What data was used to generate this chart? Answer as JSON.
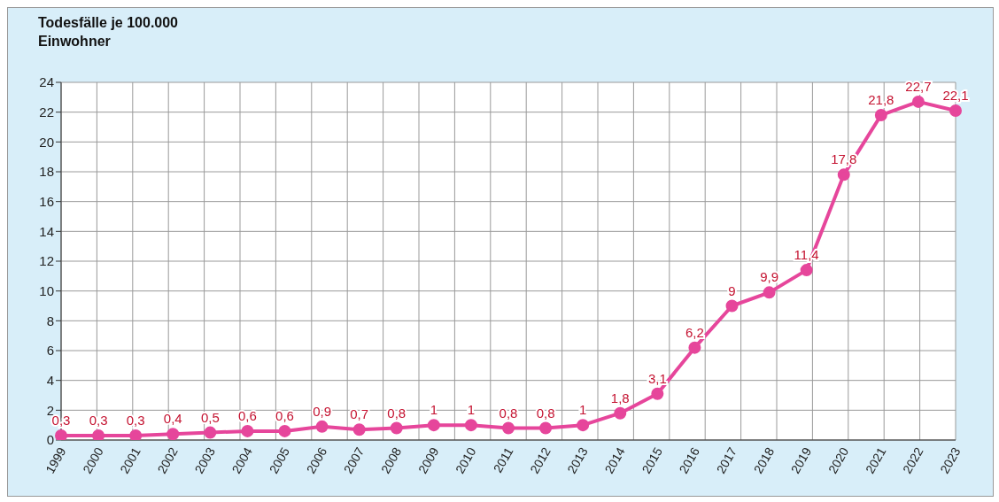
{
  "chart_data": {
    "type": "line",
    "ylabel": "Todesfälle je 100.000 Einwohner",
    "categories": [
      "1999",
      "2000",
      "2001",
      "2002",
      "2003",
      "2004",
      "2005",
      "2006",
      "2007",
      "2008",
      "2009",
      "2010",
      "2011",
      "2012",
      "2013",
      "2014",
      "2015",
      "2016",
      "2017",
      "2018",
      "2019",
      "2020",
      "2021",
      "2022",
      "2023"
    ],
    "series": [
      {
        "color": "#e6469b",
        "values": [
          0.3,
          0.3,
          0.3,
          0.4,
          0.5,
          0.6,
          0.6,
          0.9,
          0.7,
          0.8,
          1,
          1,
          0.8,
          0.8,
          1,
          1.8,
          3.1,
          6.2,
          9,
          9.9,
          11.4,
          17.8,
          21.8,
          22.7,
          22.1
        ],
        "value_labels": [
          "0,3",
          "0,3",
          "0,3",
          "0,4",
          "0,5",
          "0,6",
          "0,6",
          "0,9",
          "0,7",
          "0,8",
          "1",
          "1",
          "0,8",
          "0,8",
          "1",
          "1,8",
          "3,1",
          "6,2",
          "9",
          "9,9",
          "11,4",
          "17,8",
          "21,8",
          "22,7",
          "22,1"
        ]
      }
    ],
    "ylim": [
      0,
      24
    ],
    "yticks": [
      0,
      2,
      4,
      6,
      8,
      10,
      12,
      14,
      16,
      18,
      20,
      22,
      24
    ],
    "grid": true,
    "marker": "circle",
    "line_style": "solid"
  }
}
